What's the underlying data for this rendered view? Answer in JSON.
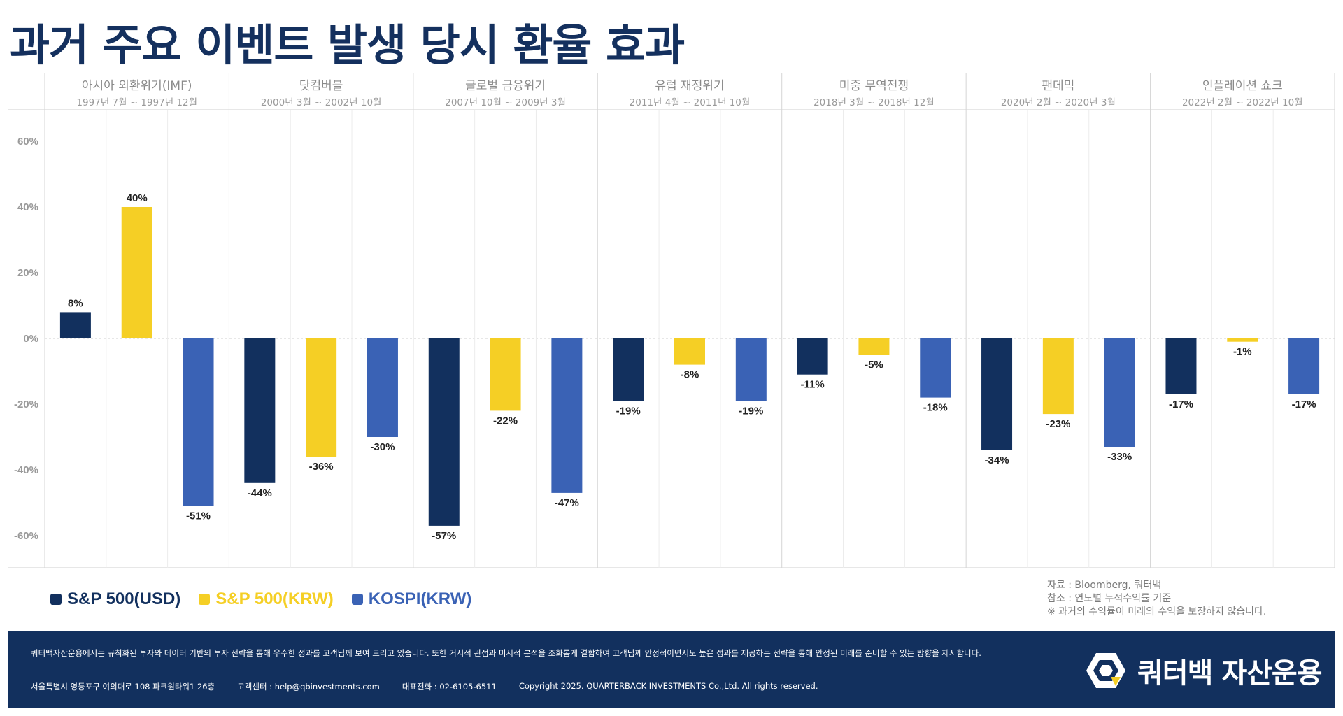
{
  "title": "과거 주요 이벤트 발생 당시 환율 효과",
  "colors": {
    "navy": "#12305e",
    "yellow": "#f5cf25",
    "blue": "#3a62b5",
    "title": "#14305e"
  },
  "chart_data": {
    "type": "bar",
    "ylim": [
      -70,
      70
    ],
    "yticks": [
      60,
      40,
      20,
      0,
      -20,
      -40,
      -60
    ],
    "ytick_labels": [
      "60%",
      "40%",
      "20%",
      "0%",
      "-20%",
      "-40%",
      "-60%"
    ],
    "grid": true,
    "legend_position": "bottom-left",
    "series_names": [
      "S&P 500(USD)",
      "S&P 500(KRW)",
      "KOSPI(KRW)"
    ],
    "series_colors": [
      "#12305e",
      "#f5cf25",
      "#3a62b5"
    ],
    "categories": [
      {
        "name": "아시아 외환위기(IMF)",
        "period": "1997년 7월 ~ 1997년 12월",
        "values": [
          8,
          40,
          -51
        ],
        "labels": [
          "8%",
          "40%",
          "-51%"
        ]
      },
      {
        "name": "닷컴버블",
        "period": "2000년 3월 ~ 2002년 10월",
        "values": [
          -44,
          -36,
          -30
        ],
        "labels": [
          "-44%",
          "-36%",
          "-30%"
        ]
      },
      {
        "name": "글로벌 금융위기",
        "period": "2007년 10월 ~ 2009년 3월",
        "values": [
          -57,
          -22,
          -47
        ],
        "labels": [
          "-57%",
          "-22%",
          "-47%"
        ]
      },
      {
        "name": "유럽 재정위기",
        "period": "2011년 4월 ~ 2011년 10월",
        "values": [
          -19,
          -8,
          -19
        ],
        "labels": [
          "-19%",
          "-8%",
          "-19%"
        ]
      },
      {
        "name": "미중 무역전쟁",
        "period": "2018년 3월 ~ 2018년 12월",
        "values": [
          -11,
          -5,
          -18
        ],
        "labels": [
          "-11%",
          "-5%",
          "-18%"
        ]
      },
      {
        "name": "팬데믹",
        "period": "2020년 2월 ~ 2020년 3월",
        "values": [
          -34,
          -23,
          -33
        ],
        "labels": [
          "-34%",
          "-23%",
          "-33%"
        ]
      },
      {
        "name": "인플레이션 쇼크",
        "period": "2022년 2월 ~ 2022년 10월",
        "values": [
          -17,
          -1,
          -17
        ],
        "labels": [
          "-17%",
          "-1%",
          "-17%"
        ]
      }
    ]
  },
  "legend": [
    {
      "label": "S&P 500(USD)",
      "color": "#12305e"
    },
    {
      "label": "S&P 500(KRW)",
      "color": "#f5cf25"
    },
    {
      "label": "KOSPI(KRW)",
      "color": "#3a62b5"
    }
  ],
  "notes": {
    "source": "자료 : Bloomberg, 쿼터백",
    "reference": "참조 : 연도별 누적수익률 기준",
    "disclaimer": "※ 과거의 수익률이 미래의 수익을 보장하지 않습니다."
  },
  "footer": {
    "description": "쿼터백자산운용에서는 규칙화된 투자와 데이터 기반의 투자 전략을 통해 우수한 성과를 고객님께 보여 드리고 있습니다. 또한 거시적 관점과 미시적 분석을 조화롭게 결합하여 고객님께 안정적이면서도 높은 성과를 제공하는 전략을 통해 안정된 미래를 준비할 수 있는 방향을 제시합니다.",
    "address": "서울특별시 영등포구 여의대로 108 파크원타워1 26층",
    "customer_center": "고객센터 : help@qbinvestments.com",
    "phone": "대표전화 : 02-6105-6511",
    "copyright": "Copyright 2025. QUARTERBACK INVESTMENTS Co.,Ltd. All rights reserved.",
    "company_name": "쿼터백 자산운용",
    "logo_icon": "quarterback-logo-icon"
  }
}
